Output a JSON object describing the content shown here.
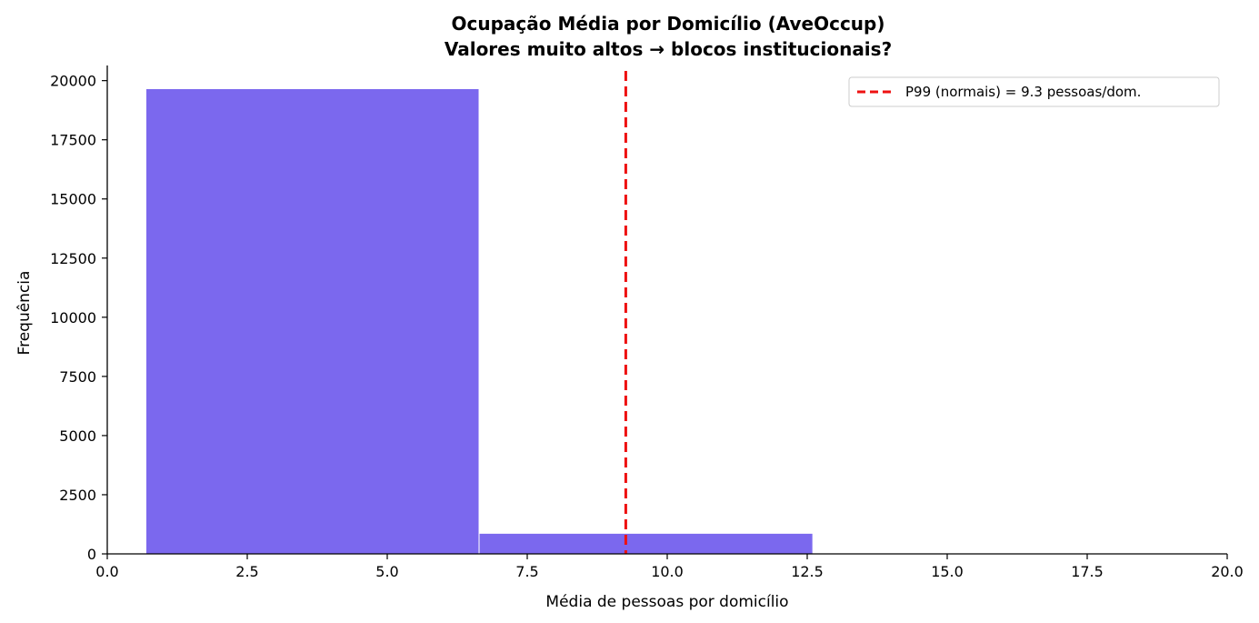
{
  "chart_data": {
    "type": "bar",
    "title_line1": "Ocupação Média por Domicílio (AveOccup)",
    "title_line2": "Valores muito altos → blocos institucionais?",
    "xlabel": "Média de pessoas por domicílio",
    "ylabel": "Frequência",
    "xlim": [
      0,
      20
    ],
    "ylim": [
      0,
      20640
    ],
    "x_ticks": [
      0,
      2.5,
      5,
      7.5,
      10,
      12.5,
      15,
      17.5,
      20
    ],
    "x_tick_labels": [
      "0.0",
      "2.5",
      "5.0",
      "7.5",
      "10.0",
      "12.5",
      "15.0",
      "17.5",
      "20.0"
    ],
    "y_ticks": [
      0,
      2500,
      5000,
      7500,
      10000,
      12500,
      15000,
      17500,
      20000
    ],
    "y_tick_labels": [
      "0",
      "2500",
      "5000",
      "7500",
      "10000",
      "12500",
      "15000",
      "17500",
      "20000"
    ],
    "bins": [
      {
        "x0": 0.69,
        "x1": 6.64,
        "count": 19660
      },
      {
        "x0": 6.64,
        "x1": 12.6,
        "count": 870
      }
    ],
    "bar_color": "#7b68ee",
    "reference_line": {
      "x": 9.26,
      "label": "P99 (normais) = 9.3 pessoas/dom.",
      "color": "#ee1111",
      "style": "dashed"
    },
    "legend_position": "top-right",
    "grid": false
  }
}
